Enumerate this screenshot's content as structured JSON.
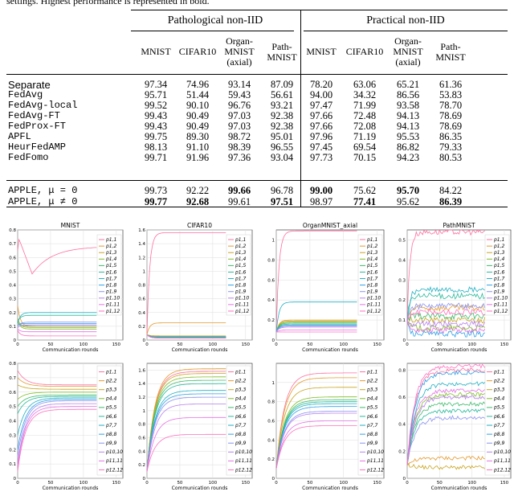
{
  "caption_fragment": "settings. Highest performance is represented in bold.",
  "table": {
    "groups": [
      "Pathological non-IID",
      "Practical non-IID"
    ],
    "columns": [
      [
        "MNIST"
      ],
      [
        "CIFAR10"
      ],
      [
        "Organ-",
        "MNIST",
        "(axial)"
      ],
      [
        "Path-",
        "MNIST"
      ],
      [
        "MNIST"
      ],
      [
        "CIFAR10"
      ],
      [
        "Organ-",
        "MNIST",
        "(axial)"
      ],
      [
        "Path-",
        "MNIST"
      ]
    ],
    "rows": [
      {
        "label": "Separate",
        "mono": false,
        "values": [
          "97.34",
          "74.96",
          "93.14",
          "87.09",
          "78.20",
          "63.06",
          "65.21",
          "61.36"
        ],
        "bold": []
      },
      {
        "label": "FedAvg",
        "mono": true,
        "values": [
          "95.71",
          "51.44",
          "59.43",
          "56.61",
          "94.00",
          "34.32",
          "86.56",
          "53.83"
        ],
        "bold": []
      },
      {
        "label": "FedAvg-local",
        "mono": true,
        "values": [
          "99.52",
          "90.10",
          "96.76",
          "93.21",
          "97.47",
          "71.99",
          "93.58",
          "78.70"
        ],
        "bold": []
      },
      {
        "label": "FedAvg-FT",
        "mono": true,
        "values": [
          "99.43",
          "90.49",
          "97.03",
          "92.38",
          "97.66",
          "72.48",
          "94.13",
          "78.69"
        ],
        "bold": []
      },
      {
        "label": "FedProx-FT",
        "mono": true,
        "values": [
          "99.43",
          "90.49",
          "97.03",
          "92.38",
          "97.66",
          "72.08",
          "94.13",
          "78.69"
        ],
        "bold": []
      },
      {
        "label": "APFL",
        "mono": true,
        "values": [
          "99.75",
          "89.30",
          "98.72",
          "95.01",
          "97.96",
          "71.19",
          "95.53",
          "86.35"
        ],
        "bold": []
      },
      {
        "label": "HeurFedAMP",
        "mono": true,
        "values": [
          "98.13",
          "91.10",
          "98.39",
          "96.55",
          "97.45",
          "69.54",
          "86.82",
          "79.33"
        ],
        "bold": []
      },
      {
        "label": "FedFomo",
        "mono": true,
        "values": [
          "99.71",
          "91.96",
          "97.36",
          "93.04",
          "97.73",
          "70.15",
          "94.23",
          "80.53"
        ],
        "bold": []
      },
      {
        "label": "APPLE, μ = 0",
        "mono": true,
        "values": [
          "99.73",
          "92.22",
          "99.66",
          "96.78",
          "99.00",
          "75.62",
          "95.70",
          "84.22"
        ],
        "bold": [
          2,
          4,
          6
        ]
      },
      {
        "label": "APPLE, μ ≠ 0",
        "mono": true,
        "values": [
          "99.77",
          "92.68",
          "99.61",
          "97.51",
          "98.97",
          "77.41",
          "95.62",
          "86.39"
        ],
        "bold": [
          0,
          1,
          3,
          5,
          7
        ]
      }
    ]
  },
  "figure": {
    "xlabel": "Communication rounds",
    "titles": [
      "MNIST",
      "CIFAR10",
      "OrganMNIST_axial",
      "PathMNIST"
    ],
    "colors": [
      "#ff6ea0",
      "#e49a2c",
      "#c9a41e",
      "#80bd24",
      "#3cba6a",
      "#27b99a",
      "#22b0c4",
      "#2ea0e8",
      "#8a93f0",
      "#b77ff0",
      "#e571e5",
      "#ff6fc0"
    ],
    "legend_top": [
      "p1,1",
      "p1,2",
      "p1,3",
      "p1,4",
      "p1,5",
      "p1,6",
      "p1,7",
      "p1,8",
      "p1,9",
      "p1,10",
      "p1,11",
      "p1,12"
    ],
    "legend_bottom": [
      "p1,1",
      "p2,2",
      "p3,3",
      "p4,4",
      "p5,5",
      "p6,6",
      "p7,7",
      "p8,8",
      "p9,9",
      "p10,10",
      "p11,11",
      "p12,12"
    ],
    "chart_data": [
      {
        "type": "line",
        "title": "MNIST",
        "xlabel": "Communication rounds",
        "xlim": [
          0,
          160
        ],
        "ylim": [
          0,
          0.8
        ],
        "xticks": [
          0,
          50,
          100,
          150
        ],
        "yticks": [
          0,
          0.1,
          0.2,
          0.3,
          0.4,
          0.5,
          0.6,
          0.7,
          0.8
        ],
        "series_final": [
          0.68,
          0.1,
          0.09,
          0.08,
          0.1,
          0.18,
          0.2,
          0.12,
          0.13,
          0.11,
          0.06,
          0.03
        ],
        "series_start": [
          0.76,
          0.25,
          0.16,
          0.14,
          0.13,
          0.13,
          0.12,
          0.11,
          0.1,
          0.09,
          0.08,
          0.07
        ],
        "legend": "top-right"
      },
      {
        "type": "line",
        "title": "CIFAR10",
        "xlabel": "Communication rounds",
        "xlim": [
          0,
          160
        ],
        "ylim": [
          0,
          1.6
        ],
        "xticks": [
          0,
          50,
          100,
          150
        ],
        "yticks": [
          0,
          0.2,
          0.4,
          0.6,
          0.8,
          1.0,
          1.2,
          1.4,
          1.6
        ],
        "series_final": [
          1.56,
          0.25,
          0.06,
          0.05,
          0.05,
          0.04,
          0.04,
          0.04,
          0.03,
          0.03,
          0.03,
          0.03
        ],
        "series_start": [
          0.1,
          0.08,
          0.08,
          0.08,
          0.08,
          0.08,
          0.08,
          0.08,
          0.08,
          0.08,
          0.08,
          0.08
        ],
        "legend": "top-right"
      },
      {
        "type": "line",
        "title": "OrganMNIST_axial",
        "xlabel": "Communication rounds",
        "xlim": [
          0,
          160
        ],
        "ylim": [
          0,
          1.1
        ],
        "xticks": [
          0,
          50,
          100,
          150
        ],
        "yticks": [
          0,
          0.2,
          0.4,
          0.6,
          0.8,
          1.0
        ],
        "series_final": [
          1.09,
          0.2,
          0.19,
          0.18,
          0.17,
          0.16,
          0.38,
          0.15,
          0.14,
          0.13,
          0.1,
          0.08
        ],
        "series_start": [
          0.1,
          0.08,
          0.08,
          0.08,
          0.08,
          0.08,
          0.08,
          0.08,
          0.08,
          0.08,
          0.08,
          0.08
        ],
        "legend": "top-right"
      },
      {
        "type": "line",
        "title": "PathMNIST",
        "xlabel": "Communication rounds",
        "xlim": [
          0,
          160
        ],
        "ylim": [
          0,
          0.55
        ],
        "xticks": [
          0,
          50,
          100,
          150
        ],
        "yticks": [
          0,
          0.1,
          0.2,
          0.3,
          0.4,
          0.5
        ],
        "series_final": [
          0.54,
          0.16,
          0.1,
          0.06,
          0.12,
          0.22,
          0.25,
          0.03,
          0.17,
          0.08,
          0.05,
          0.14
        ],
        "series_start": [
          0.1,
          0.09,
          0.09,
          0.09,
          0.09,
          0.09,
          0.09,
          0.09,
          0.09,
          0.09,
          0.09,
          0.09
        ],
        "legend": "right"
      },
      {
        "type": "line",
        "title": "",
        "xlabel": "Communication rounds",
        "xlim": [
          0,
          160
        ],
        "ylim": [
          0,
          0.8
        ],
        "xticks": [
          0,
          50,
          100,
          150
        ],
        "yticks": [
          0,
          0.1,
          0.2,
          0.3,
          0.4,
          0.5,
          0.6,
          0.7,
          0.8
        ],
        "series_final": [
          0.65,
          0.64,
          0.62,
          0.6,
          0.58,
          0.57,
          0.56,
          0.55,
          0.54,
          0.52,
          0.5,
          0.48
        ],
        "series_start": [
          0.75,
          0.7,
          0.65,
          0.55,
          0.5,
          0.45,
          0.3,
          0.2,
          0.15,
          0.1,
          0.08,
          0.05
        ],
        "legend": "right"
      },
      {
        "type": "line",
        "title": "",
        "xlabel": "Communication rounds",
        "xlim": [
          0,
          160
        ],
        "ylim": [
          0,
          1.7
        ],
        "xticks": [
          0,
          50,
          100,
          150
        ],
        "yticks": [
          0,
          0.2,
          0.4,
          0.6,
          0.8,
          1.0,
          1.2,
          1.4,
          1.6
        ],
        "series_final": [
          1.58,
          1.62,
          1.55,
          1.5,
          1.45,
          1.4,
          1.3,
          1.25,
          1.2,
          1.1,
          0.9,
          0.65
        ],
        "series_start": [
          0.1,
          0.1,
          0.1,
          0.1,
          0.1,
          0.1,
          0.1,
          0.1,
          0.1,
          0.1,
          0.1,
          0.1
        ],
        "legend": "right"
      },
      {
        "type": "line",
        "title": "",
        "xlabel": "Communication rounds",
        "xlim": [
          0,
          160
        ],
        "ylim": [
          0,
          1.2
        ],
        "xticks": [
          0,
          50,
          100,
          150
        ],
        "yticks": [
          0,
          0.2,
          0.4,
          0.6,
          0.8,
          1.0
        ],
        "series_final": [
          1.1,
          1.05,
          0.95,
          0.85,
          0.82,
          0.8,
          0.78,
          0.75,
          0.7,
          0.68,
          0.6,
          0.55
        ],
        "series_start": [
          0.1,
          0.1,
          0.1,
          0.1,
          0.1,
          0.1,
          0.1,
          0.1,
          0.1,
          0.1,
          0.1,
          0.1
        ],
        "legend": "right"
      },
      {
        "type": "line",
        "title": "",
        "xlabel": "Communication rounds",
        "xlim": [
          0,
          160
        ],
        "ylim": [
          0,
          0.85
        ],
        "xticks": [
          0,
          50,
          100,
          150
        ],
        "yticks": [
          0,
          0.2,
          0.4,
          0.6,
          0.8
        ],
        "series_final": [
          0.8,
          0.15,
          0.08,
          0.62,
          0.55,
          0.5,
          0.7,
          0.78,
          0.45,
          0.6,
          0.65,
          0.83
        ],
        "series_start": [
          0.1,
          0.1,
          0.1,
          0.1,
          0.1,
          0.1,
          0.1,
          0.1,
          0.1,
          0.1,
          0.1,
          0.1
        ],
        "legend": "right"
      }
    ]
  }
}
